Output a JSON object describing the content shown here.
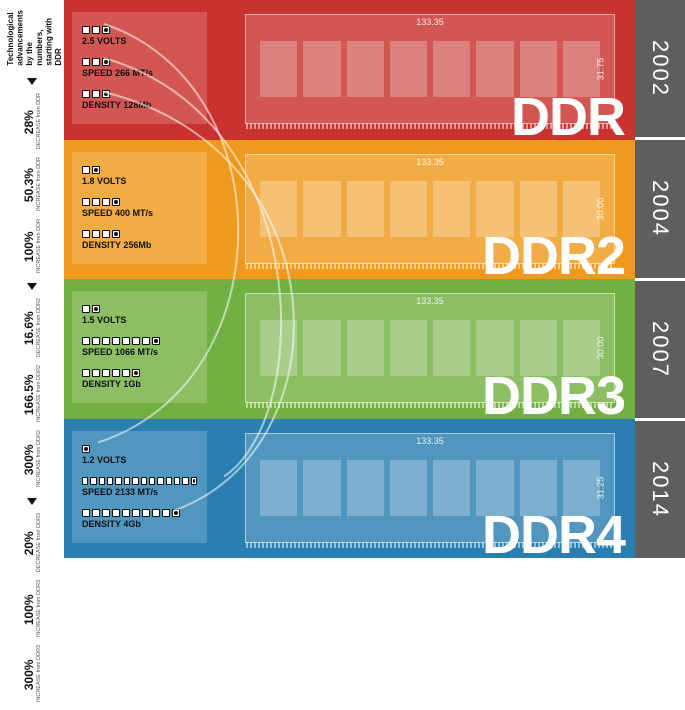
{
  "intro_text": "Technological advancements by the numbers, starting with DDR",
  "bands": [
    {
      "id": "ddr",
      "title": "DDR",
      "year": "2002",
      "color": "#c9322e",
      "dim_w": "133.35",
      "dim_h": "31.75",
      "volts": {
        "value": "2.5 VOLTS",
        "dots": 3
      },
      "speed": {
        "value": "SPEED 266 MT/s",
        "dots": 3
      },
      "density": {
        "value": "DENSITY 128Mb",
        "dots": 3
      }
    },
    {
      "id": "ddr2",
      "title": "DDR2",
      "year": "2004",
      "color": "#ef9a1e",
      "dim_w": "133.35",
      "dim_h": "30.00",
      "volts": {
        "value": "1.8 VOLTS",
        "dots": 2
      },
      "speed": {
        "value": "SPEED 400 MT/s",
        "dots": 4
      },
      "density": {
        "value": "DENSITY 256Mb",
        "dots": 4
      },
      "stats": [
        {
          "pct": "28%",
          "label": "DECREASE from DDR"
        },
        {
          "pct": "50.3%",
          "label": "INCREASE from DDR"
        },
        {
          "pct": "100%",
          "label": "INCREASE from DDR"
        }
      ]
    },
    {
      "id": "ddr3",
      "title": "DDR3",
      "year": "2007",
      "color": "#73b043",
      "dim_w": "133.35",
      "dim_h": "30.00",
      "volts": {
        "value": "1.5 VOLTS",
        "dots": 2
      },
      "speed": {
        "value": "SPEED 1066 MT/s",
        "dots": 8
      },
      "density": {
        "value": "DENSITY 1Gb",
        "dots": 6
      },
      "stats": [
        {
          "pct": "16.6%",
          "label": "DECREASE from DDR2"
        },
        {
          "pct": "166.5%",
          "label": "INCREASE from DDR2"
        },
        {
          "pct": "300%",
          "label": "INCREASE from DDR2"
        }
      ]
    },
    {
      "id": "ddr4",
      "title": "DDR4",
      "year": "2014",
      "color": "#2b7fb0",
      "dim_w": "133.35",
      "dim_h": "31.25",
      "volts": {
        "value": "1.2 VOLTS",
        "dots": 1
      },
      "speed": {
        "value": "SPEED 2133 MT/s",
        "dots": 14
      },
      "density": {
        "value": "DENSITY 4Gb",
        "dots": 10
      },
      "stats": [
        {
          "pct": "20%",
          "label": "DECREASE from DDR3"
        },
        {
          "pct": "100%",
          "label": "INCREASE from DDR3"
        },
        {
          "pct": "300%",
          "label": "INCREASE from DDR3"
        }
      ]
    }
  ],
  "style": {
    "year_bg": "#5e5e5e",
    "text_dark": "#111111",
    "curve_stroke": "rgba(255,255,255,0.55)",
    "curve_width": 2
  }
}
